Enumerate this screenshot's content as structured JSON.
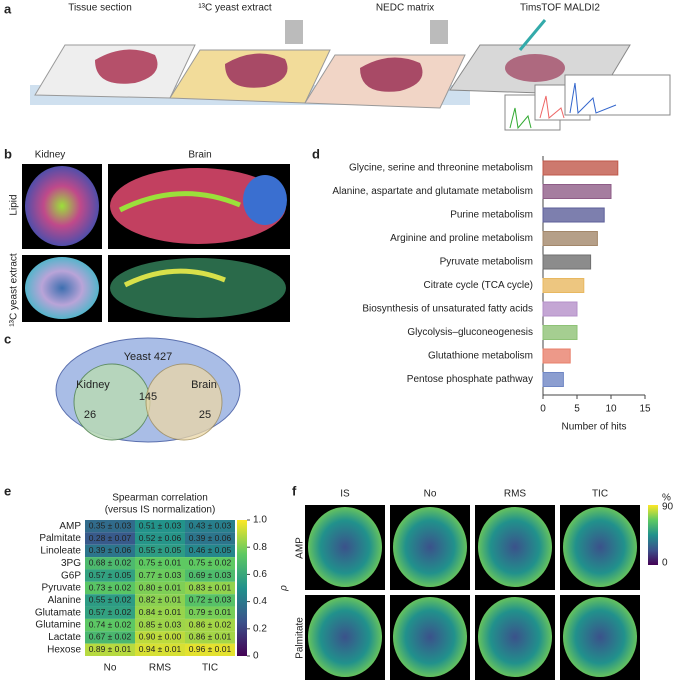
{
  "panel_a": {
    "label": "a",
    "steps": [
      "Tissue section",
      "¹³C yeast extract",
      "NEDC matrix",
      "TimsTOF MALDI2"
    ]
  },
  "panel_b": {
    "label": "b",
    "columns": [
      "Kidney",
      "Brain"
    ],
    "rows": [
      "Lipid",
      "¹³C yeast extract"
    ]
  },
  "panel_c": {
    "label": "c",
    "yeast": "Yeast 427",
    "kidney": "Kidney",
    "kidney_only": "26",
    "shared": "145",
    "brain": "Brain",
    "brain_only": "25"
  },
  "panel_d": {
    "label": "d"
  },
  "panel_e": {
    "label": "e"
  },
  "panel_f": {
    "label": "f",
    "columns": [
      "IS",
      "No",
      "RMS",
      "TIC"
    ],
    "rows": [
      "AMP",
      "Palmitate"
    ],
    "colorbar_unit": "%",
    "colorbar_max": "90",
    "colorbar_min": "0"
  },
  "chart_data": [
    {
      "type": "bar",
      "categories": [
        "Glycine, serine and threonine metabolism",
        "Alanine, aspartate and glutamate metabolism",
        "Purine metabolism",
        "Arginine and proline metabolism",
        "Pyruvate metabolism",
        "Citrate cycle (TCA cycle)",
        "Biosynthesis of unsaturated fatty acids",
        "Glycolysis–gluconeogenesis",
        "Glutathione metabolism",
        "Pentose phosphate pathway"
      ],
      "values": [
        11,
        10,
        9,
        8,
        7,
        6,
        5,
        5,
        4,
        3
      ],
      "colors": [
        "#c0584a",
        "#8e5c87",
        "#5d5f9a",
        "#a3876a",
        "#6f6f6f",
        "#e8b860",
        "#b590c9",
        "#8ec276",
        "#e8806b",
        "#6f86c4"
      ],
      "xlim": [
        0,
        15
      ],
      "xticks": [
        0,
        5,
        10,
        15
      ],
      "xlabel": "Number of hits"
    },
    {
      "type": "heatmap",
      "title": "Spearman correlation",
      "subtitle": "(versus IS normalization)",
      "rows": [
        "AMP",
        "Palmitate",
        "Linoleate",
        "3PG",
        "G6P",
        "Pyruvate",
        "Alanine",
        "Glutamate",
        "Glutamine",
        "Lactate",
        "Hexose"
      ],
      "columns": [
        "No",
        "RMS",
        "TIC"
      ],
      "values": [
        [
          0.35,
          0.51,
          0.43
        ],
        [
          0.28,
          0.52,
          0.39
        ],
        [
          0.39,
          0.55,
          0.46
        ],
        [
          0.68,
          0.75,
          0.75
        ],
        [
          0.57,
          0.77,
          0.69
        ],
        [
          0.73,
          0.8,
          0.83
        ],
        [
          0.55,
          0.82,
          0.72
        ],
        [
          0.57,
          0.84,
          0.79
        ],
        [
          0.74,
          0.85,
          0.86
        ],
        [
          0.67,
          0.9,
          0.86
        ],
        [
          0.89,
          0.94,
          0.96
        ]
      ],
      "value_labels": [
        [
          "0.35 ± 0.03",
          "0.51 ± 0.03",
          "0.43 ± 0.03"
        ],
        [
          "0.28 ± 0.07",
          "0.52 ± 0.06",
          "0.39 ± 0.06"
        ],
        [
          "0.39 ± 0.06",
          "0.55 ± 0.05",
          "0.46 ± 0.05"
        ],
        [
          "0.68 ± 0.02",
          "0.75 ± 0.01",
          "0.75 ± 0.02"
        ],
        [
          "0.57 ± 0.05",
          "0.77 ± 0.03",
          "0.69 ± 0.03"
        ],
        [
          "0.73 ± 0.02",
          "0.80 ± 0.01",
          "0.83 ± 0.01"
        ],
        [
          "0.55 ± 0.02",
          "0.82 ± 0.01",
          "0.72 ± 0.03"
        ],
        [
          "0.57 ± 0.02",
          "0.84 ± 0.01",
          "0.79 ± 0.01"
        ],
        [
          "0.74 ± 0.02",
          "0.85 ± 0.03",
          "0.86 ± 0.02"
        ],
        [
          "0.67 ± 0.02",
          "0.90 ± 0.00",
          "0.86 ± 0.01"
        ],
        [
          "0.89 ± 0.01",
          "0.94 ± 0.01",
          "0.96 ± 0.01"
        ]
      ],
      "zlim": [
        0,
        1
      ],
      "zticks": [
        0,
        0.2,
        0.4,
        0.6,
        0.8,
        {
          "value": 1,
          "label": "1.0"
        }
      ],
      "zlabel": "ρ"
    }
  ]
}
